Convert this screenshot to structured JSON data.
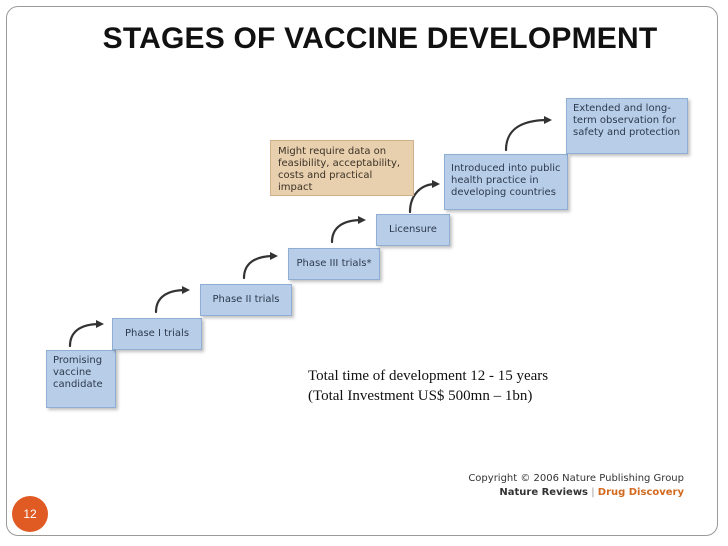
{
  "title": "STAGES  OF VACCINE DEVELOPMENT",
  "stages": {
    "promising": "Promising vaccine candidate",
    "phase1": "Phase I trials",
    "phase2": "Phase II trials",
    "phase3": "Phase III trials*",
    "licensure": "Licensure",
    "introduced": "Introduced into public health practice in developing countries",
    "extended": "Extended and long-term observation for safety and protection"
  },
  "note": "Might require data on feasibility, acceptability, costs and practical impact",
  "summary": {
    "time": "Total time of development 12 - 15 years",
    "investment": "(Total Investment US$ 500mn – 1bn)"
  },
  "copyright": {
    "line1": "Copyright © 2006 Nature Publishing Group",
    "journal_name": "Nature Reviews",
    "journal_sep": "|",
    "journal_section": "Drug Discovery"
  },
  "page_number": "12",
  "colors": {
    "stage_fill": "#b7cde8",
    "note_fill": "#e8cfae",
    "badge": "#e05a24",
    "journal_accent": "#d2691e"
  },
  "icons": [
    "curved-arrow-icon"
  ]
}
